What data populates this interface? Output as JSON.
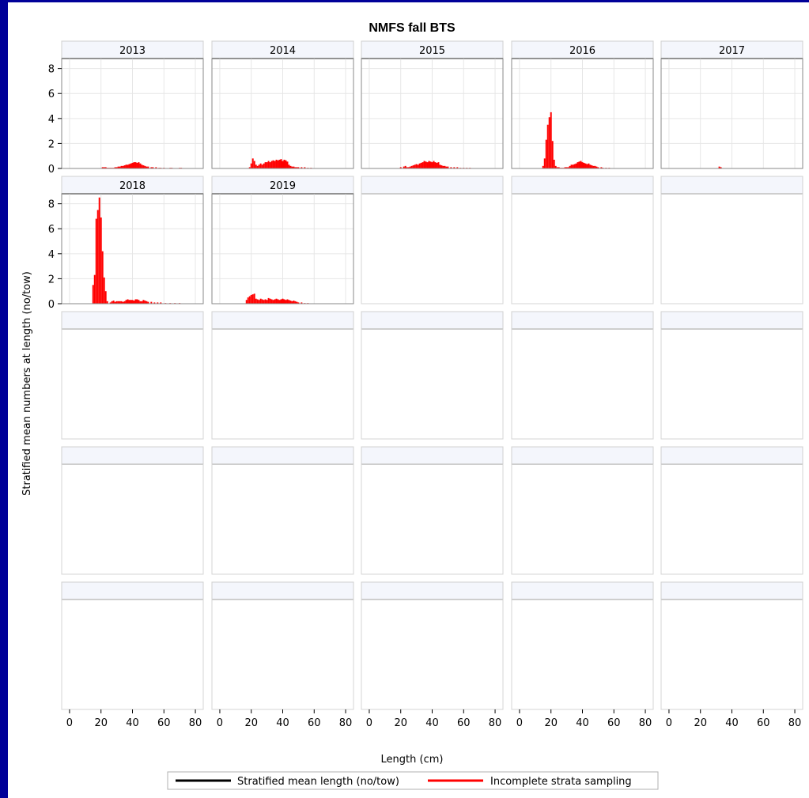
{
  "chart_data": {
    "type": "bar",
    "title": "NMFS fall BTS",
    "xlabel": "Length (cm)",
    "ylabel": "Stratified mean numbers at length (no/tow)",
    "xlim": [
      -5,
      85
    ],
    "ylim": [
      0,
      8.8
    ],
    "x_ticks": [
      0,
      20,
      40,
      60,
      80
    ],
    "y_ticks": [
      0,
      2,
      4,
      6,
      8
    ],
    "grid": true,
    "layout": {
      "rows": 5,
      "cols": 5
    },
    "legend": {
      "position": "bottom",
      "entries": [
        {
          "label": "Stratified mean length (no/tow)",
          "color": "#000000"
        },
        {
          "label": "Incomplete strata sampling",
          "color": "#ff0000"
        }
      ]
    },
    "bar_color": "#ff0000",
    "panels": [
      {
        "year": "2013",
        "x": [
          21,
          22,
          23,
          24,
          25,
          26,
          27,
          28,
          29,
          30,
          31,
          32,
          33,
          34,
          35,
          36,
          37,
          38,
          39,
          40,
          41,
          42,
          43,
          44,
          45,
          46,
          47,
          48,
          49,
          50,
          52,
          53,
          55,
          57,
          58,
          60,
          64,
          65,
          70,
          71
        ],
        "values": [
          0.1,
          0.1,
          0.1,
          0.05,
          0.05,
          0.05,
          0.05,
          0.05,
          0.1,
          0.1,
          0.15,
          0.15,
          0.2,
          0.2,
          0.25,
          0.3,
          0.3,
          0.35,
          0.4,
          0.45,
          0.5,
          0.5,
          0.45,
          0.5,
          0.4,
          0.3,
          0.25,
          0.2,
          0.15,
          0.15,
          0.1,
          0.1,
          0.1,
          0.05,
          0.05,
          0.05,
          0.05,
          0.05,
          0.05,
          0.05
        ]
      },
      {
        "year": "2014",
        "x": [
          19,
          20,
          21,
          22,
          23,
          24,
          25,
          26,
          27,
          28,
          29,
          30,
          31,
          32,
          33,
          34,
          35,
          36,
          37,
          38,
          39,
          40,
          41,
          42,
          43,
          44,
          45,
          46,
          47,
          48,
          49,
          50,
          52,
          54,
          56,
          58
        ],
        "values": [
          0.1,
          0.4,
          0.8,
          0.6,
          0.3,
          0.2,
          0.3,
          0.4,
          0.3,
          0.4,
          0.5,
          0.5,
          0.6,
          0.5,
          0.6,
          0.65,
          0.6,
          0.7,
          0.65,
          0.7,
          0.75,
          0.6,
          0.7,
          0.65,
          0.55,
          0.3,
          0.2,
          0.15,
          0.15,
          0.1,
          0.1,
          0.1,
          0.1,
          0.1,
          0.05,
          0.05
        ]
      },
      {
        "year": "2015",
        "x": [
          20,
          22,
          23,
          24,
          25,
          26,
          27,
          28,
          29,
          30,
          31,
          32,
          33,
          34,
          35,
          36,
          37,
          38,
          39,
          40,
          41,
          42,
          43,
          44,
          45,
          46,
          47,
          48,
          49,
          50,
          52,
          54,
          56,
          58,
          60,
          62,
          64
        ],
        "values": [
          0.1,
          0.15,
          0.2,
          0.1,
          0.1,
          0.15,
          0.2,
          0.25,
          0.3,
          0.35,
          0.3,
          0.4,
          0.45,
          0.5,
          0.6,
          0.55,
          0.5,
          0.6,
          0.55,
          0.5,
          0.6,
          0.5,
          0.45,
          0.5,
          0.3,
          0.25,
          0.2,
          0.2,
          0.15,
          0.15,
          0.1,
          0.1,
          0.1,
          0.05,
          0.05,
          0.05,
          0.05
        ]
      },
      {
        "year": "2016",
        "x": [
          15,
          16,
          17,
          18,
          19,
          20,
          21,
          22,
          23,
          24,
          25,
          26,
          27,
          28,
          29,
          30,
          31,
          32,
          33,
          34,
          35,
          36,
          37,
          38,
          39,
          40,
          41,
          42,
          43,
          44,
          45,
          46,
          47,
          48,
          49,
          50,
          52,
          53,
          55,
          57
        ],
        "values": [
          0.2,
          0.8,
          2.3,
          3.5,
          4.1,
          4.5,
          2.2,
          0.7,
          0.2,
          0.1,
          0.1,
          0.05,
          0.05,
          0.05,
          0.1,
          0.1,
          0.1,
          0.2,
          0.3,
          0.3,
          0.35,
          0.4,
          0.5,
          0.55,
          0.6,
          0.5,
          0.45,
          0.4,
          0.35,
          0.4,
          0.3,
          0.25,
          0.2,
          0.2,
          0.15,
          0.1,
          0.1,
          0.05,
          0.05,
          0.05
        ]
      },
      {
        "year": "2017",
        "x": [
          32,
          33
        ],
        "values": [
          0.15,
          0.1
        ]
      },
      {
        "year": "2018",
        "x": [
          15,
          16,
          17,
          18,
          19,
          20,
          21,
          22,
          23,
          24,
          26,
          27,
          28,
          29,
          30,
          31,
          32,
          33,
          34,
          35,
          36,
          37,
          38,
          39,
          40,
          41,
          42,
          43,
          44,
          45,
          46,
          47,
          48,
          49,
          50,
          52,
          54,
          56,
          58,
          61,
          64,
          67,
          70
        ],
        "values": [
          1.5,
          2.3,
          6.8,
          7.5,
          8.5,
          6.9,
          4.2,
          2.1,
          1.0,
          0.2,
          0.1,
          0.2,
          0.25,
          0.15,
          0.2,
          0.2,
          0.2,
          0.2,
          0.15,
          0.2,
          0.3,
          0.35,
          0.3,
          0.3,
          0.3,
          0.25,
          0.35,
          0.35,
          0.3,
          0.2,
          0.2,
          0.3,
          0.25,
          0.2,
          0.15,
          0.15,
          0.1,
          0.1,
          0.1,
          0.05,
          0.05,
          0.05,
          0.05
        ]
      },
      {
        "year": "2019",
        "x": [
          17,
          18,
          19,
          20,
          21,
          22,
          23,
          24,
          25,
          26,
          27,
          28,
          29,
          30,
          31,
          32,
          33,
          34,
          35,
          36,
          37,
          38,
          39,
          40,
          41,
          42,
          43,
          44,
          45,
          46,
          47,
          48,
          49,
          50,
          52,
          54,
          56
        ],
        "values": [
          0.3,
          0.5,
          0.6,
          0.7,
          0.75,
          0.8,
          0.4,
          0.35,
          0.3,
          0.4,
          0.35,
          0.3,
          0.35,
          0.3,
          0.45,
          0.4,
          0.35,
          0.3,
          0.35,
          0.4,
          0.35,
          0.3,
          0.35,
          0.4,
          0.35,
          0.3,
          0.35,
          0.3,
          0.25,
          0.2,
          0.25,
          0.2,
          0.15,
          0.1,
          0.1,
          0.05,
          0.05
        ]
      }
    ]
  }
}
